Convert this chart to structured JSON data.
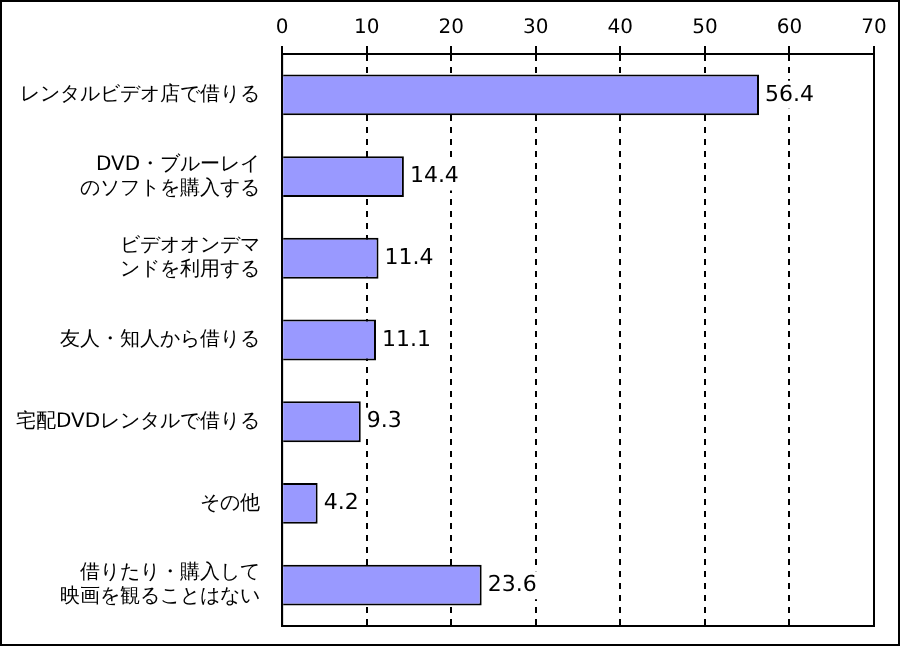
{
  "chart_data": {
    "type": "bar",
    "orientation": "horizontal",
    "categories": [
      "レンタルビデオ店で借りる",
      "DVD・ブルーレイのソフトを購入する",
      "ビデオオンデマンドを利用する",
      "友人・知人から借りる",
      "宅配DVDレンタルで借りる",
      "その他",
      "借りたり・購入して映画を観ることはない"
    ],
    "values": [
      56.4,
      14.4,
      11.4,
      11.1,
      9.3,
      4.2,
      23.6
    ],
    "color": "#9999ff",
    "xlim": [
      0,
      70
    ],
    "xticks": [
      0,
      10,
      20,
      30,
      40,
      50,
      60,
      70
    ],
    "grid": "x",
    "data_labels": true,
    "legend": false
  }
}
